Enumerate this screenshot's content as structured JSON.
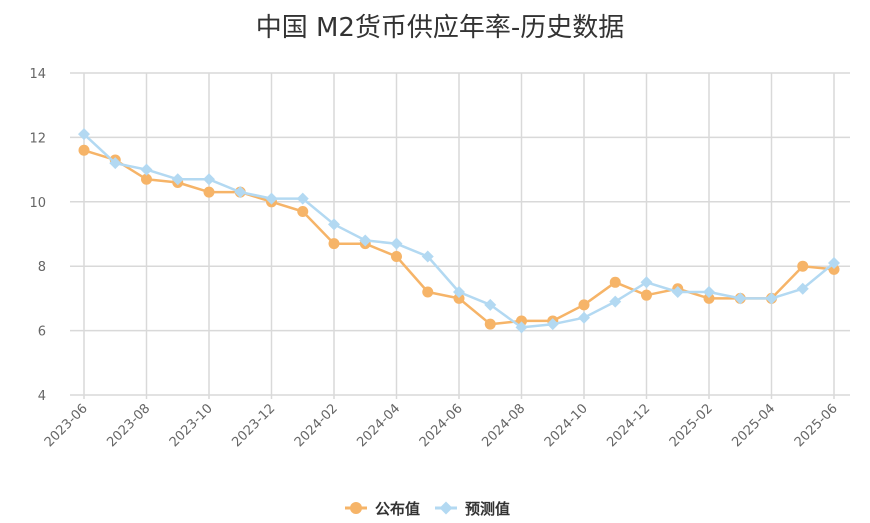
{
  "chart_data": {
    "type": "line",
    "title": "中国 M2货币供应年率-历史数据",
    "x": [
      "2023-06",
      "2023-07",
      "2023-08",
      "2023-09",
      "2023-10",
      "2023-11",
      "2023-12",
      "2024-01",
      "2024-02",
      "2024-03",
      "2024-04",
      "2024-05",
      "2024-06",
      "2024-07",
      "2024-08",
      "2024-09",
      "2024-10",
      "2024-11",
      "2024-12",
      "2025-01",
      "2025-02",
      "2025-03",
      "2025-04",
      "2025-05",
      "2025-06"
    ],
    "xticks": [
      "2023-06",
      "2023-08",
      "2023-10",
      "2023-12",
      "2024-02",
      "2024-04",
      "2024-06",
      "2024-08",
      "2024-10",
      "2024-12",
      "2025-02",
      "2025-04",
      "2025-06"
    ],
    "yticks": [
      4,
      6,
      8,
      10,
      12,
      14
    ],
    "ylim": [
      4,
      14
    ],
    "grid": true,
    "legend_position": "bottom-center",
    "series": [
      {
        "name": "公布值",
        "color": "#f6b468",
        "marker": "circle",
        "values": [
          11.6,
          11.3,
          10.7,
          10.6,
          10.3,
          10.3,
          10.0,
          9.7,
          8.7,
          8.7,
          8.3,
          7.2,
          7.0,
          6.2,
          6.3,
          6.3,
          6.8,
          7.5,
          7.1,
          7.3,
          7.0,
          7.0,
          7.0,
          8.0,
          7.9
        ]
      },
      {
        "name": "预测值",
        "color": "#b3d9f2",
        "marker": "diamond",
        "values": [
          12.1,
          11.2,
          11.0,
          10.7,
          10.7,
          10.3,
          10.1,
          10.1,
          9.3,
          8.8,
          8.7,
          8.3,
          7.2,
          6.8,
          6.1,
          6.2,
          6.4,
          6.9,
          7.5,
          7.2,
          7.2,
          7.0,
          7.0,
          7.3,
          8.1
        ]
      }
    ]
  }
}
